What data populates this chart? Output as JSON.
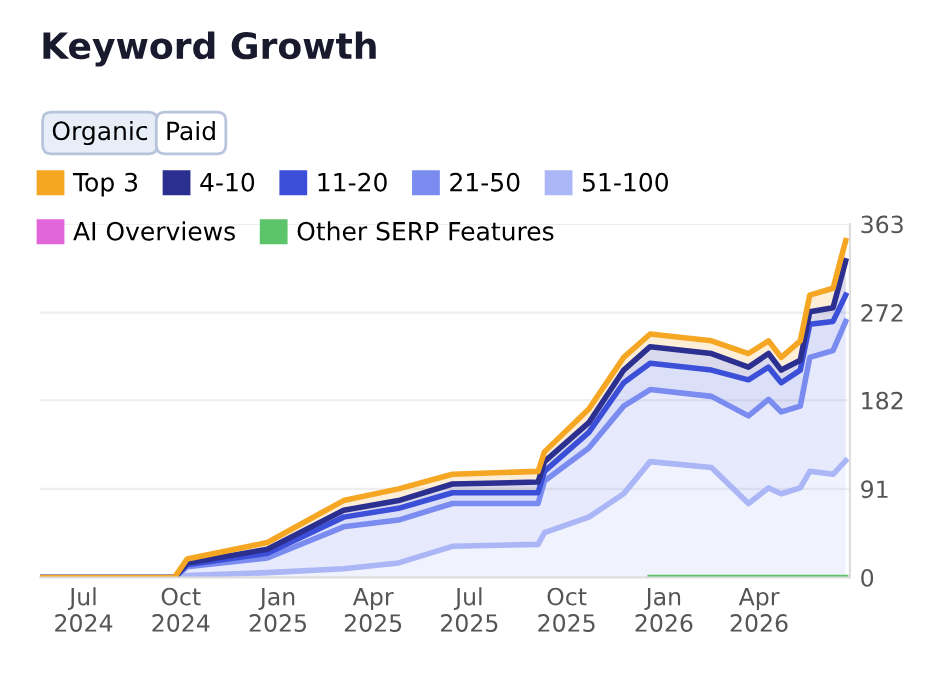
{
  "chart_data": {
    "type": "area",
    "stacked": true,
    "title": "Keyword Growth",
    "annotations": [
      "Organic",
      "Paid"
    ],
    "x": [
      "2024-05-21",
      "2024-09-25",
      "2024-10-07",
      "2024-12-22",
      "2025-03-04",
      "2025-04-25",
      "2025-06-15",
      "2025-09-04",
      "2025-09-10",
      "2025-10-22",
      "2025-11-24",
      "2025-12-19",
      "2026-02-15",
      "2026-03-22",
      "2026-04-10",
      "2026-04-22",
      "2026-05-10",
      "2026-05-19",
      "2026-06-10",
      "2026-06-22"
    ],
    "series": [
      {
        "name": "51-100",
        "color": "#aab6f5",
        "values": [
          0,
          0,
          2,
          5,
          9,
          15,
          32,
          34,
          46,
          62,
          86,
          119,
          113,
          76,
          92,
          86,
          92,
          109,
          106,
          120
        ]
      },
      {
        "name": "21-50",
        "color": "#7b8cf0",
        "values": [
          0,
          0,
          9,
          15,
          43,
          44,
          44,
          42,
          53,
          71,
          90,
          74,
          73,
          90,
          91,
          84,
          84,
          117,
          127,
          143
        ]
      },
      {
        "name": "11-20",
        "color": "#3b4fd8",
        "values": [
          0,
          0,
          2,
          5,
          10,
          12,
          11,
          11,
          10,
          16,
          24,
          27,
          27,
          37,
          33,
          30,
          37,
          34,
          30,
          27
        ]
      },
      {
        "name": "4-10",
        "color": "#2b2f8f",
        "values": [
          0,
          0,
          2,
          4,
          7,
          8,
          9,
          11,
          10,
          10,
          13,
          17,
          17,
          13,
          14,
          13,
          10,
          13,
          14,
          35
        ]
      },
      {
        "name": "Top 3",
        "color": "#f5a623",
        "values": [
          0,
          0,
          4,
          7,
          10,
          12,
          10,
          11,
          10,
          14,
          13,
          13,
          13,
          14,
          13,
          13,
          20,
          17,
          20,
          21
        ]
      },
      {
        "name": "AI Overviews",
        "type": "line",
        "color": "#e066d9",
        "values": [
          null,
          null,
          null,
          null,
          null,
          null,
          null,
          null,
          null,
          null,
          null,
          null,
          null,
          null,
          null,
          null,
          null,
          null,
          null,
          null
        ]
      },
      {
        "name": "Other SERP Features",
        "type": "line",
        "color": "#5cc46a",
        "values": [
          null,
          null,
          null,
          null,
          null,
          null,
          null,
          null,
          null,
          null,
          null,
          0,
          0,
          0,
          0,
          0,
          0,
          0,
          0,
          0
        ]
      }
    ],
    "xlim": [
      "2024-05-21",
      "2026-06-26"
    ],
    "xticks": [
      {
        "value": "2024-07-01",
        "label": "Jul\n2024"
      },
      {
        "value": "2024-10-01",
        "label": "Oct\n2024"
      },
      {
        "value": "2025-01-01",
        "label": "Jan\n2025"
      },
      {
        "value": "2025-04-01",
        "label": "Apr\n2025"
      },
      {
        "value": "2025-07-01",
        "label": "Jul\n2025"
      },
      {
        "value": "2025-10-01",
        "label": "Oct\n2025"
      },
      {
        "value": "2026-01-01",
        "label": "Jan\n2026"
      },
      {
        "value": "2026-04-01",
        "label": "Apr\n2026"
      }
    ],
    "ylim": [
      0,
      363
    ],
    "yticks": [
      0,
      91,
      182,
      272,
      363
    ],
    "grid": "y",
    "legend": "top left"
  }
}
